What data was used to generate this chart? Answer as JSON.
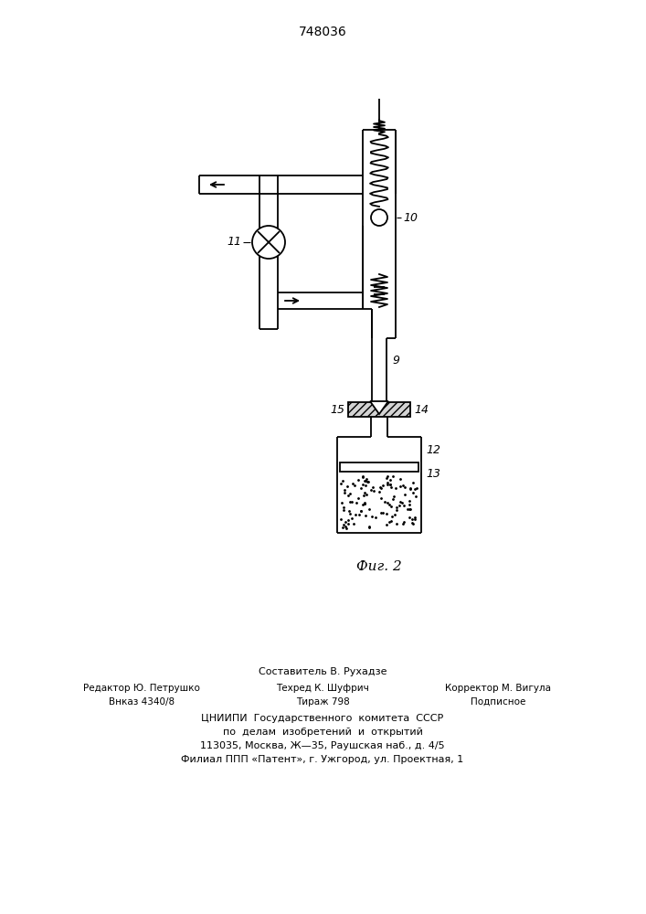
{
  "title": "748036",
  "fig_label": "Фиг. 2",
  "bg_color": "#ffffff",
  "line_color": "#000000",
  "footer_line1": "Составитель В. Рухадзе",
  "footer_line2_left": "Редактор Ю. Петрушко",
  "footer_line2_mid": "Техред К. Шуфрич",
  "footer_line2_right": "Корректор М. Вигула",
  "footer_line3_left": "Внказ 4340/8",
  "footer_line3_mid": "Тираж 798",
  "footer_line3_right": "Подписное",
  "footer_line4": "ЦНИИПИ  Государственного  комитета  СССР",
  "footer_line5": "по  делам  изобретений  и  открытий",
  "footer_line6": "113035, Москва, Ж—35, Раушская наб., д. 4/5",
  "footer_line7": "Филиал ППП «Патент», г. Ужгород, ул. Проектная, 1"
}
